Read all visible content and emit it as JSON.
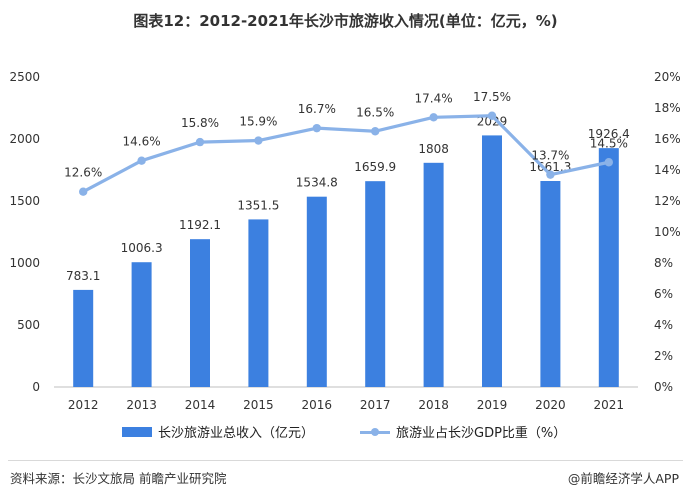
{
  "title": "图表12：2012-2021年长沙市旅游收入情况(单位：亿元，%)",
  "footer": {
    "source": "资料来源：长沙文旅局 前瞻产业研究院",
    "credit": "@前瞻经济学人APP"
  },
  "chart_data": {
    "type": "bar",
    "categories": [
      "2012",
      "2013",
      "2014",
      "2015",
      "2016",
      "2017",
      "2018",
      "2019",
      "2020",
      "2021"
    ],
    "series": [
      {
        "name": "长沙旅游业总收入（亿元）",
        "type": "bar",
        "axis": "left",
        "values": [
          783.1,
          1006.3,
          1192.1,
          1351.5,
          1534.8,
          1659.9,
          1808,
          2029,
          1661.3,
          1926.4
        ],
        "labels": [
          "783.1",
          "1006.3",
          "1192.1",
          "1351.5",
          "1534.8",
          "1659.9",
          "1808",
          "2029",
          "1661.3",
          "1926.4"
        ]
      },
      {
        "name": "旅游业占长沙GDP比重（%）",
        "type": "line",
        "axis": "right",
        "values": [
          12.6,
          14.6,
          15.8,
          15.9,
          16.7,
          16.5,
          17.4,
          17.5,
          13.7,
          14.5
        ],
        "labels": [
          "12.6%",
          "14.6%",
          "15.8%",
          "15.9%",
          "16.7%",
          "16.5%",
          "17.4%",
          "17.5%",
          "13.7%",
          "14.5%"
        ]
      }
    ],
    "y_left": {
      "range": [
        0,
        2500
      ],
      "ticks": [
        "0",
        "500",
        "1000",
        "1500",
        "2000",
        "2500"
      ]
    },
    "y_right": {
      "range": [
        0,
        20
      ],
      "ticks": [
        "0%",
        "2%",
        "4%",
        "6%",
        "8%",
        "10%",
        "12%",
        "14%",
        "16%",
        "18%",
        "20%"
      ]
    },
    "grid": false,
    "legend_position": "bottom",
    "colors": {
      "bar": "#3c80e0",
      "line": "#8ab2e8",
      "axis": "#bfbfbf"
    }
  }
}
